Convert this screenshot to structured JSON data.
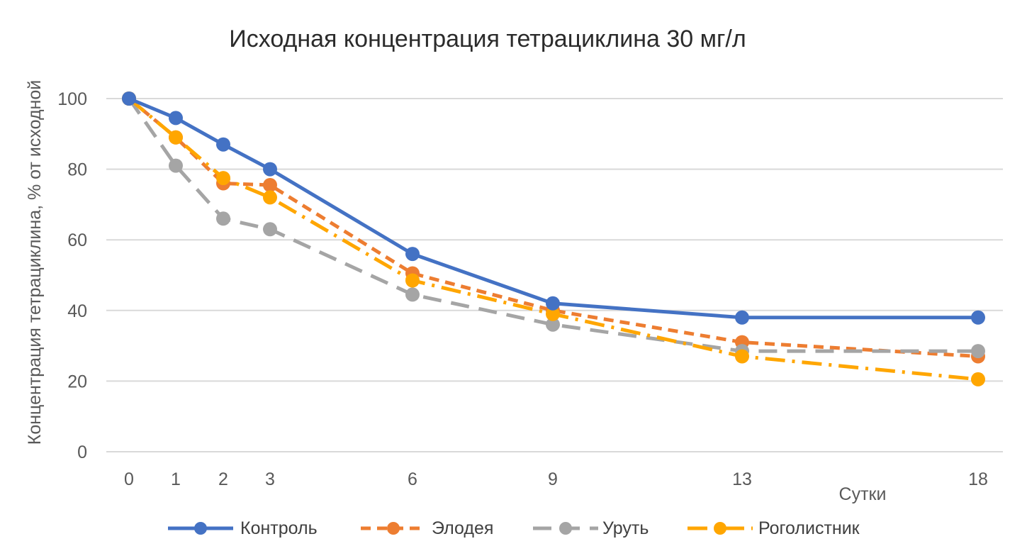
{
  "chart_data": {
    "type": "line",
    "title": "Исходная концентрация тетрациклина  30 мг/л",
    "xlabel": "Сутки",
    "ylabel": "Концентрация тетрациклина, % от исходной",
    "x": [
      0,
      1,
      2,
      3,
      6,
      9,
      13,
      18
    ],
    "x_tick_labels": [
      "0",
      "1",
      "2",
      "3",
      "6",
      "9",
      "13",
      "18"
    ],
    "y_tick_labels": [
      "0",
      "20",
      "40",
      "60",
      "80",
      "100"
    ],
    "ylim": [
      0,
      100
    ],
    "grid": "horizontal",
    "legend_position": "bottom",
    "series": [
      {
        "name": "Контроль",
        "values": [
          100,
          94.5,
          87,
          80,
          56,
          42,
          38,
          38
        ],
        "color": "#4472C4",
        "line_style": "solid"
      },
      {
        "name": "Элодея",
        "values": [
          100,
          89,
          76,
          75.5,
          50.5,
          40,
          31,
          27
        ],
        "color": "#ED7D31",
        "line_style": "dash"
      },
      {
        "name": "Уруть",
        "values": [
          100,
          81,
          66,
          63,
          44.5,
          36,
          28.5,
          28.5
        ],
        "color": "#A5A5A5",
        "line_style": "longdash"
      },
      {
        "name": "Роголистник",
        "values": [
          100,
          89,
          77.5,
          72,
          48.5,
          39,
          27,
          20.5
        ],
        "color": "#FFA600",
        "line_style": "dashdot"
      }
    ]
  }
}
